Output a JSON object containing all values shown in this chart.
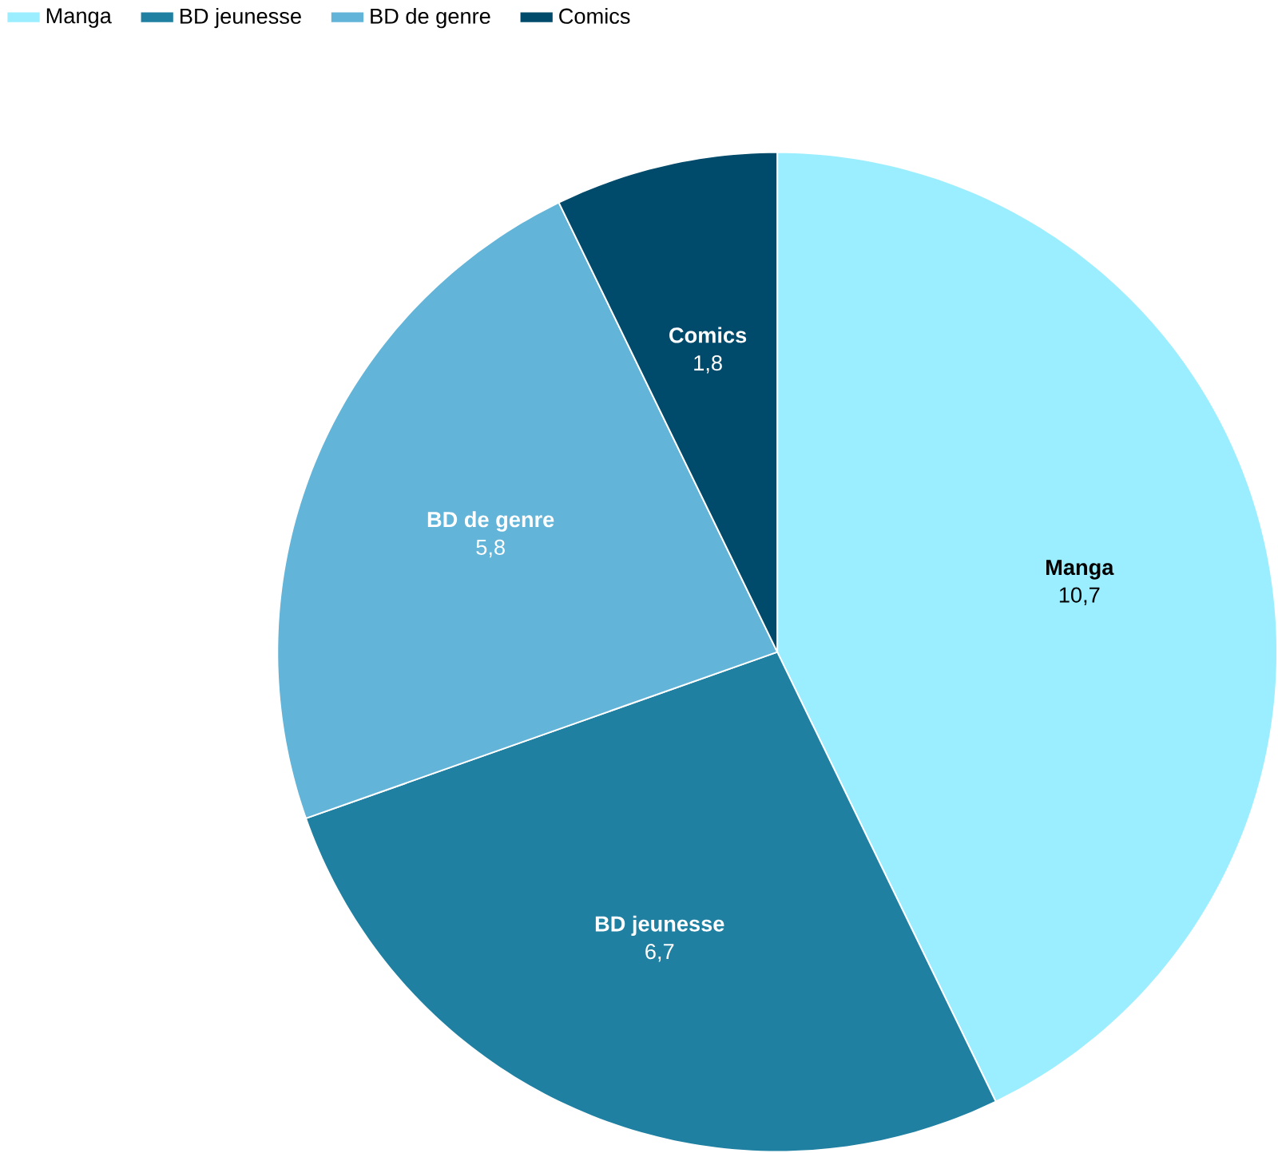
{
  "chart_data": {
    "type": "pie",
    "categories": [
      "Manga",
      "BD jeunesse",
      "BD de genre",
      "Comics"
    ],
    "values": [
      10.7,
      6.7,
      5.8,
      1.8
    ],
    "value_labels": [
      "10,7",
      "6,7",
      "5,8",
      "1,8"
    ],
    "colors": [
      "#9beeff",
      "#1f80a2",
      "#62b4d8",
      "#004b6b"
    ],
    "legend": "top left"
  }
}
